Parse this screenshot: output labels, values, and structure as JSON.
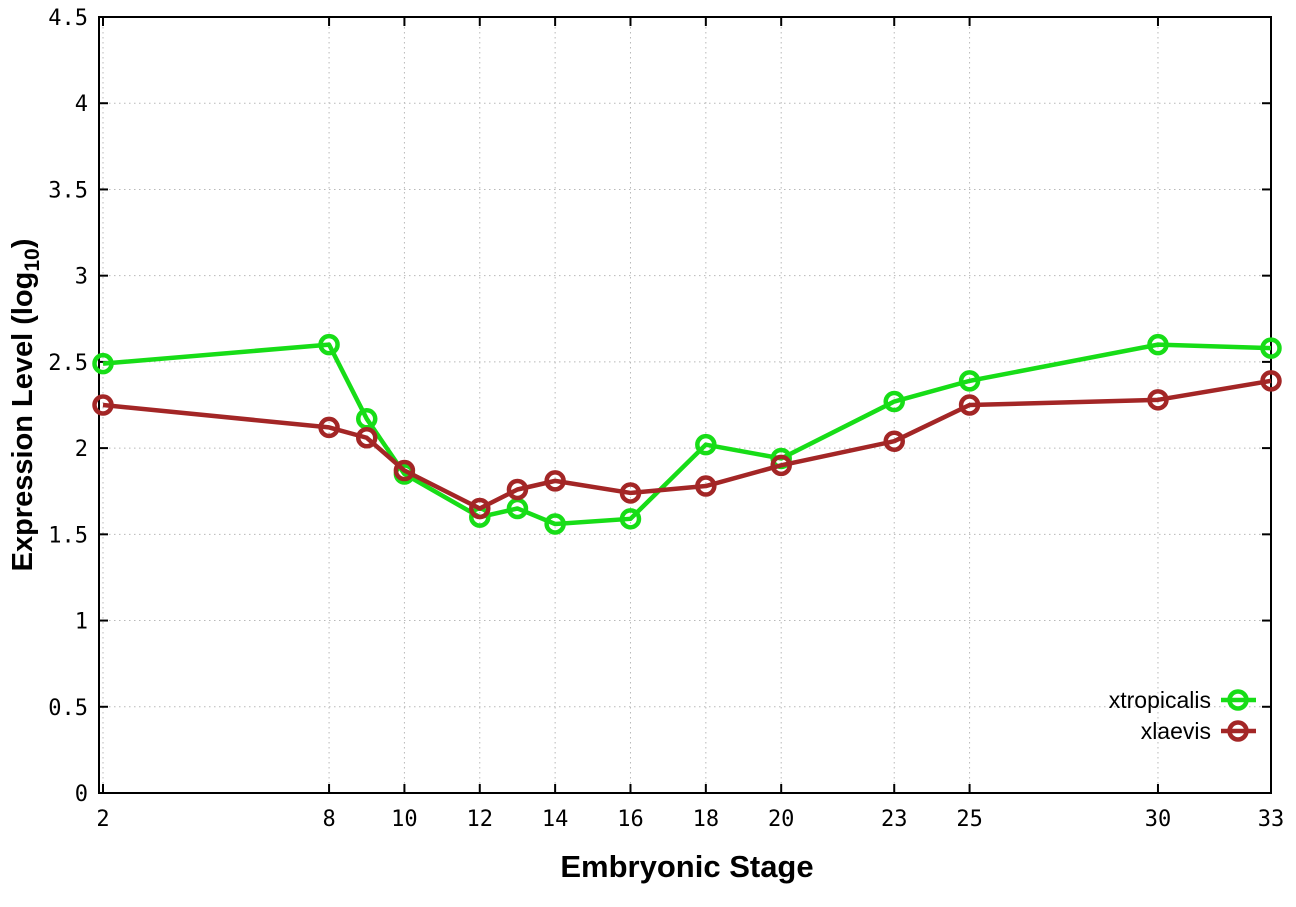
{
  "chart_data": {
    "type": "line",
    "title": "",
    "xlabel": "Embryonic Stage",
    "ylabel": "Expression Level (log10)",
    "ylabel_parts": {
      "main": "Expression Level (log",
      "sub": "10",
      "tail": ")"
    },
    "xlim": [
      2,
      33
    ],
    "ylim": [
      0,
      4.5
    ],
    "grid": true,
    "x_tick_values": [
      2,
      8,
      10,
      12,
      14,
      16,
      18,
      20,
      23,
      25,
      30,
      33
    ],
    "x_tick_labels": [
      "2",
      "8",
      "10",
      "12",
      "14",
      "16",
      "18",
      "20",
      "23",
      "25",
      "30",
      "33"
    ],
    "y_tick_values": [
      0,
      0.5,
      1,
      1.5,
      2,
      2.5,
      3,
      3.5,
      4,
      4.5
    ],
    "y_tick_labels": [
      "0",
      "0.5",
      "1",
      "1.5",
      "2",
      "2.5",
      "3",
      "3.5",
      "4",
      "4.5"
    ],
    "x": [
      2,
      8,
      9,
      10,
      12,
      13,
      14,
      16,
      18,
      20,
      23,
      25,
      30,
      33
    ],
    "series": [
      {
        "name": "xtropicalis",
        "color": "#17dd17",
        "values": [
          2.49,
          2.6,
          2.17,
          1.85,
          1.6,
          1.65,
          1.56,
          1.59,
          2.02,
          1.94,
          2.27,
          2.39,
          2.6,
          2.58
        ]
      },
      {
        "name": "xlaevis",
        "color": "#a32626",
        "values": [
          2.25,
          2.12,
          2.06,
          1.87,
          1.65,
          1.76,
          1.81,
          1.74,
          1.78,
          1.9,
          2.04,
          2.25,
          2.28,
          2.39
        ]
      }
    ],
    "legend": {
      "position": "bottom-right",
      "entries": [
        "xtropicalis",
        "xlaevis"
      ]
    },
    "colors": {
      "grid": "#b8b8b8",
      "axis": "#000000",
      "text": "#000000",
      "background": "#ffffff"
    }
  }
}
